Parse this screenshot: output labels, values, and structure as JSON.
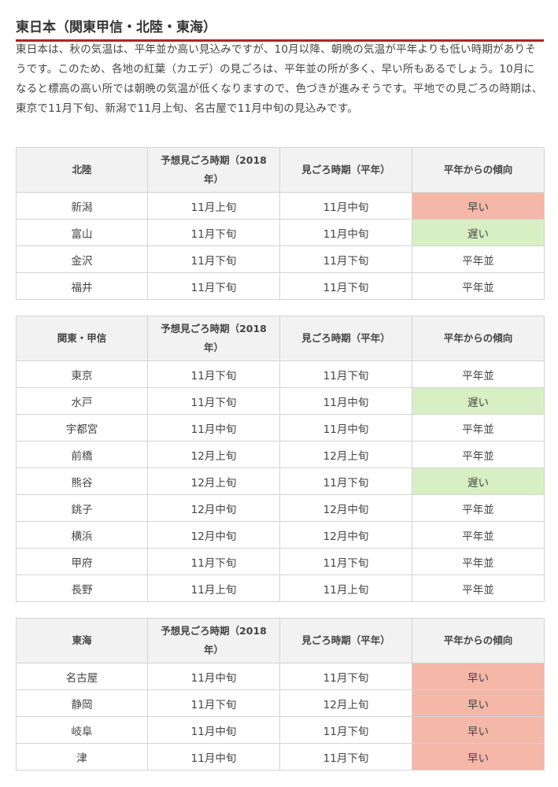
{
  "title": "東日本（関東甲信・北陸・東海）",
  "intro": "東日本は、秋の気温は、平年並か高い見込みですが、10月以降、朝晩の気温が平年よりも低い時期がありそうです。このため、各地の紅葉（カエデ）の見ごろは、平年並の所が多く、早い所もあるでしょう。10月になると標高の高い所では朝晩の気温が低くなりますので、色づきが進みそうです。平地での見ごろの時期は、東京で11月下旬、新潟で11月上旬、名古屋で11月中旬の見込みです。",
  "colors": {
    "accent": "#b22222",
    "early": "#f4b7a8",
    "late": "#d8efc4",
    "header_bg": "#f2f2f2"
  },
  "tables": [
    {
      "region": "北陸",
      "headers": [
        "予想見ごろ時期（2018年）",
        "見ごろ時期（平年）",
        "平年からの傾向"
      ],
      "rows": [
        {
          "city": "新潟",
          "forecast": "11月上旬",
          "normal": "11月中旬",
          "trend": "早い",
          "trend_type": "early"
        },
        {
          "city": "富山",
          "forecast": "11月下旬",
          "normal": "11月中旬",
          "trend": "遅い",
          "trend_type": "late"
        },
        {
          "city": "金沢",
          "forecast": "11月下旬",
          "normal": "11月下旬",
          "trend": "平年並",
          "trend_type": "normal"
        },
        {
          "city": "福井",
          "forecast": "11月下旬",
          "normal": "11月下旬",
          "trend": "平年並",
          "trend_type": "normal"
        }
      ]
    },
    {
      "region": "関東・甲信",
      "headers": [
        "予想見ごろ時期（2018年）",
        "見ごろ時期（平年）",
        "平年からの傾向"
      ],
      "rows": [
        {
          "city": "東京",
          "forecast": "11月下旬",
          "normal": "11月下旬",
          "trend": "平年並",
          "trend_type": "normal"
        },
        {
          "city": "水戸",
          "forecast": "11月下旬",
          "normal": "11月中旬",
          "trend": "遅い",
          "trend_type": "late"
        },
        {
          "city": "宇都宮",
          "forecast": "11月中旬",
          "normal": "11月中旬",
          "trend": "平年並",
          "trend_type": "normal"
        },
        {
          "city": "前橋",
          "forecast": "12月上旬",
          "normal": "12月上旬",
          "trend": "平年並",
          "trend_type": "normal"
        },
        {
          "city": "熊谷",
          "forecast": "12月上旬",
          "normal": "11月下旬",
          "trend": "遅い",
          "trend_type": "late"
        },
        {
          "city": "銚子",
          "forecast": "12月中旬",
          "normal": "12月中旬",
          "trend": "平年並",
          "trend_type": "normal"
        },
        {
          "city": "横浜",
          "forecast": "12月中旬",
          "normal": "12月中旬",
          "trend": "平年並",
          "trend_type": "normal"
        },
        {
          "city": "甲府",
          "forecast": "11月下旬",
          "normal": "11月下旬",
          "trend": "平年並",
          "trend_type": "normal"
        },
        {
          "city": "長野",
          "forecast": "11月上旬",
          "normal": "11月上旬",
          "trend": "平年並",
          "trend_type": "normal"
        }
      ]
    },
    {
      "region": "東海",
      "headers": [
        "予想見ごろ時期（2018年）",
        "見ごろ時期（平年）",
        "平年からの傾向"
      ],
      "rows": [
        {
          "city": "名古屋",
          "forecast": "11月中旬",
          "normal": "11月下旬",
          "trend": "早い",
          "trend_type": "early"
        },
        {
          "city": "静岡",
          "forecast": "11月下旬",
          "normal": "12月上旬",
          "trend": "早い",
          "trend_type": "early"
        },
        {
          "city": "岐阜",
          "forecast": "11月中旬",
          "normal": "11月下旬",
          "trend": "早い",
          "trend_type": "early"
        },
        {
          "city": "津",
          "forecast": "11月中旬",
          "normal": "11月下旬",
          "trend": "早い",
          "trend_type": "early"
        }
      ]
    }
  ]
}
